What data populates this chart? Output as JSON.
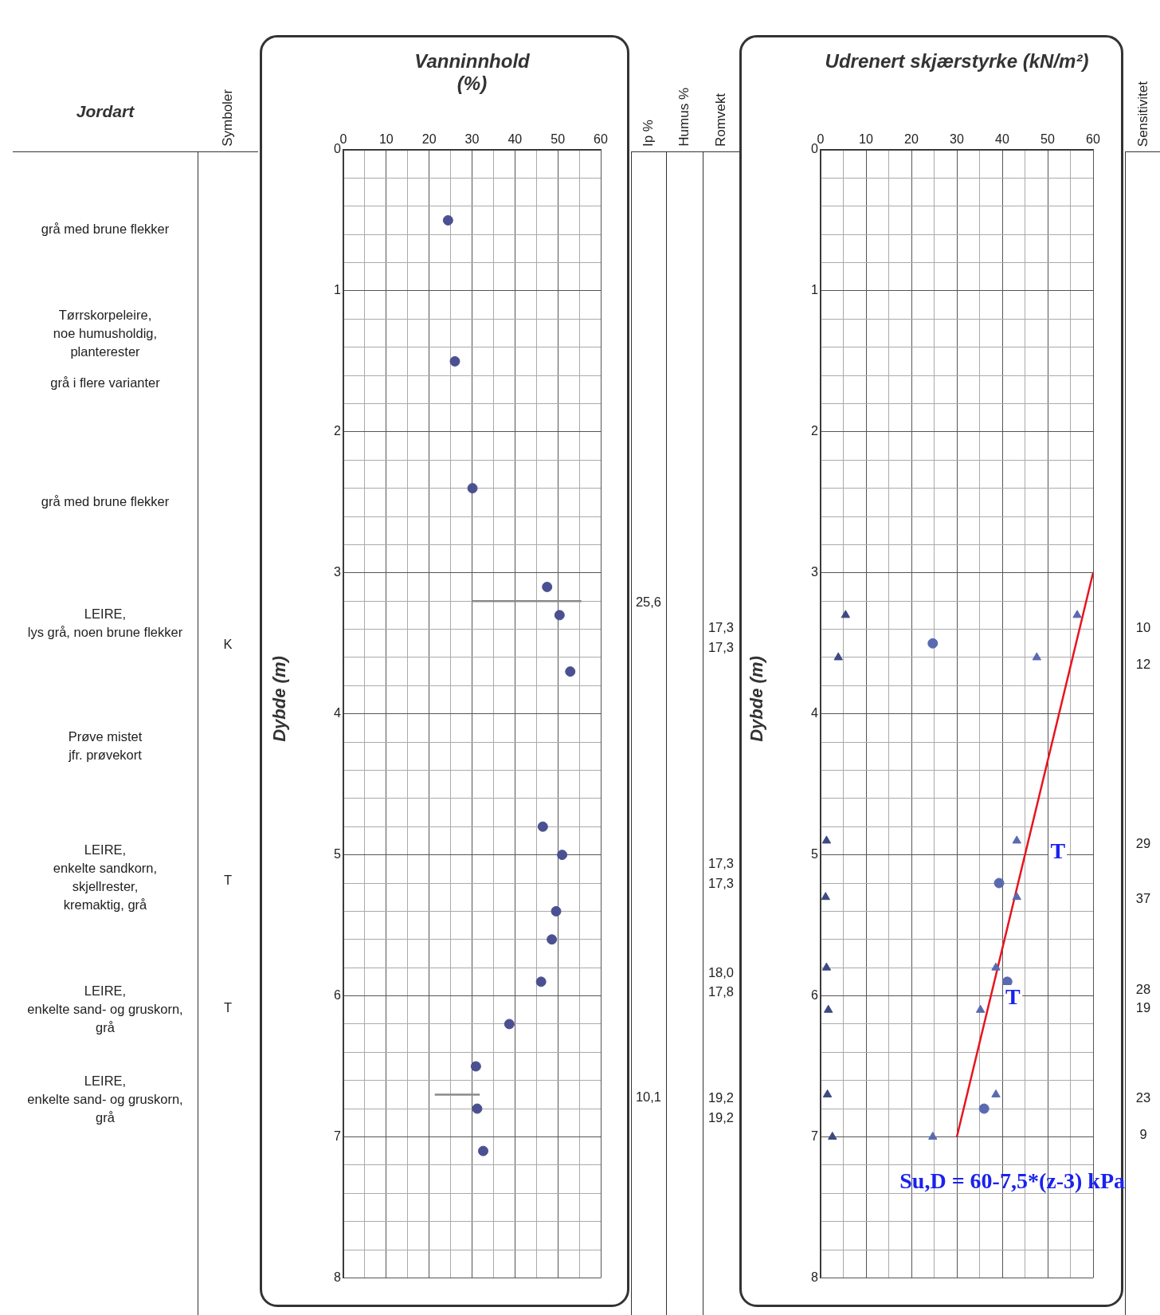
{
  "chart_data": [
    {
      "type": "other",
      "title": "Jordart",
      "annotations": [
        "grå med brune flekker",
        "Tørrskorpeleire,\nnoe humusholdig,\nplanterester",
        "grå i flere varianter",
        "grå med brune flekker",
        "LEIRE,\nlys grå, noen brune flekker",
        "Prøve mistet\njfr. prøvekort",
        "LEIRE,\nenkelte sandkorn,\nskjellrester,\nkremaktig, grå",
        "LEIRE,\nenkelte sand- og gruskorn,\ngrå",
        "LEIRE,\nenkelte sand- og gruskorn,\ngrå"
      ]
    },
    {
      "type": "other",
      "title": "Symboler",
      "annotations": [
        "K",
        "T",
        "T"
      ]
    },
    {
      "type": "scatter",
      "title": "Vanninnhold\n(%)",
      "ylabel": "Dybde (m)",
      "xlim": [
        0,
        60
      ],
      "ylim": [
        8,
        0
      ],
      "grid": true,
      "xticks": [
        0,
        {
          "value": 5,
          "label": null
        },
        10,
        {
          "value": 15,
          "label": null
        },
        20,
        {
          "value": 25,
          "label": null
        },
        30,
        {
          "value": 35,
          "label": null
        },
        40,
        {
          "value": 45,
          "label": null
        },
        50,
        {
          "value": 55,
          "label": null
        },
        60
      ],
      "yticks": [
        0,
        {
          "value": 0.2,
          "label": null
        },
        {
          "value": 0.4,
          "label": null
        },
        {
          "value": 0.6,
          "label": null
        },
        {
          "value": 0.8,
          "label": null
        },
        1,
        {
          "value": 1.2,
          "label": null
        },
        {
          "value": 1.4,
          "label": null
        },
        {
          "value": 1.6,
          "label": null
        },
        {
          "value": 1.8,
          "label": null
        },
        2,
        {
          "value": 2.2,
          "label": null
        },
        {
          "value": 2.4,
          "label": null
        },
        {
          "value": 2.6,
          "label": null
        },
        {
          "value": 2.8,
          "label": null
        },
        3,
        {
          "value": 3.2,
          "label": null
        },
        {
          "value": 3.4,
          "label": null
        },
        {
          "value": 3.6,
          "label": null
        },
        {
          "value": 3.8,
          "label": null
        },
        4,
        {
          "value": 4.2,
          "label": null
        },
        {
          "value": 4.4,
          "label": null
        },
        {
          "value": 4.6,
          "label": null
        },
        {
          "value": 4.8,
          "label": null
        },
        5,
        {
          "value": 5.2,
          "label": null
        },
        {
          "value": 5.4,
          "label": null
        },
        {
          "value": 5.6,
          "label": null
        },
        {
          "value": 5.8,
          "label": null
        },
        6,
        {
          "value": 6.2,
          "label": null
        },
        {
          "value": 6.4,
          "label": null
        },
        {
          "value": 6.6,
          "label": null
        },
        {
          "value": 6.8,
          "label": null
        },
        7,
        {
          "value": 7.2,
          "label": null
        },
        {
          "value": 7.4,
          "label": null
        },
        {
          "value": 7.6,
          "label": null
        },
        {
          "value": 7.8,
          "label": null
        },
        8
      ],
      "series": [
        {
          "type": "scatter",
          "marker": "circle",
          "color": "#4a5090",
          "x": [
            24.4,
            26.0,
            30.1,
            47.5,
            50.4,
            52.9,
            46.5,
            51.0,
            49.6,
            48.6,
            46.1,
            38.7,
            30.9,
            31.2,
            32.6
          ],
          "values": [
            0.5,
            1.5,
            2.4,
            3.1,
            3.3,
            3.7,
            4.8,
            5.0,
            5.4,
            5.6,
            5.9,
            6.2,
            6.5,
            6.8,
            7.1
          ]
        },
        {
          "type": "line",
          "color": "#8a8a8a",
          "x": [
            30.1,
            55.5
          ],
          "values": [
            3.2,
            3.2
          ]
        },
        {
          "type": "line",
          "color": "#8a8a8a",
          "x": [
            21.3,
            31.8
          ],
          "values": [
            6.7,
            6.7
          ]
        }
      ]
    },
    {
      "type": "other",
      "title": "Ip %",
      "annotations": [
        "25,6",
        "10,1"
      ]
    },
    {
      "type": "other",
      "title": "Humus %"
    },
    {
      "type": "other",
      "title": "Romvekt",
      "annotations": [
        "17,3",
        "17,3",
        "17,3",
        "17,3",
        "18,0",
        "17,8",
        "19,2",
        "19,2"
      ]
    },
    {
      "type": "scatter",
      "title": "Udrenert skjærstyrke (kN/m²)",
      "ylabel": "Dybde (m)",
      "xlim": [
        0,
        60
      ],
      "ylim": [
        8,
        0
      ],
      "grid": true,
      "xticks": [
        0,
        {
          "value": 5,
          "label": null
        },
        10,
        {
          "value": 15,
          "label": null
        },
        20,
        {
          "value": 25,
          "label": null
        },
        30,
        {
          "value": 35,
          "label": null
        },
        40,
        {
          "value": 45,
          "label": null
        },
        50,
        {
          "value": 55,
          "label": null
        },
        60
      ],
      "yticks": [
        0,
        {
          "value": 0.2,
          "label": null
        },
        {
          "value": 0.4,
          "label": null
        },
        {
          "value": 0.6,
          "label": null
        },
        {
          "value": 0.8,
          "label": null
        },
        1,
        {
          "value": 1.2,
          "label": null
        },
        {
          "value": 1.4,
          "label": null
        },
        {
          "value": 1.6,
          "label": null
        },
        {
          "value": 1.8,
          "label": null
        },
        2,
        {
          "value": 2.2,
          "label": null
        },
        {
          "value": 2.4,
          "label": null
        },
        {
          "value": 2.6,
          "label": null
        },
        {
          "value": 2.8,
          "label": null
        },
        3,
        {
          "value": 3.2,
          "label": null
        },
        {
          "value": 3.4,
          "label": null
        },
        {
          "value": 3.6,
          "label": null
        },
        {
          "value": 3.8,
          "label": null
        },
        4,
        {
          "value": 4.2,
          "label": null
        },
        {
          "value": 4.4,
          "label": null
        },
        {
          "value": 4.6,
          "label": null
        },
        {
          "value": 4.8,
          "label": null
        },
        5,
        {
          "value": 5.2,
          "label": null
        },
        {
          "value": 5.4,
          "label": null
        },
        {
          "value": 5.6,
          "label": null
        },
        {
          "value": 5.8,
          "label": null
        },
        6,
        {
          "value": 6.2,
          "label": null
        },
        {
          "value": 6.4,
          "label": null
        },
        {
          "value": 6.6,
          "label": null
        },
        {
          "value": 6.8,
          "label": null
        },
        7,
        {
          "value": 7.2,
          "label": null
        },
        {
          "value": 7.4,
          "label": null
        },
        {
          "value": 7.6,
          "label": null
        },
        {
          "value": 7.8,
          "label": null
        },
        8
      ],
      "series": [
        {
          "type": "scatter",
          "marker": "triangle",
          "color": "#3d4a80",
          "x": [
            5.5,
            3.9,
            1.3,
            1.1,
            1.3,
            1.7,
            1.5,
            2.6
          ],
          "values": [
            3.3,
            3.6,
            4.9,
            5.3,
            5.8,
            6.1,
            6.7,
            7.0
          ]
        },
        {
          "type": "scatter",
          "marker": "triangle",
          "color": "#5a6ab0",
          "x": [
            56.5,
            47.6,
            43.2,
            43.2,
            38.6,
            35.2,
            38.6,
            24.7
          ],
          "values": [
            3.3,
            3.6,
            4.9,
            5.3,
            5.8,
            6.1,
            6.7,
            7.0
          ]
        },
        {
          "type": "scatter",
          "marker": "circle",
          "color": "#5a6ab0",
          "x": [
            24.7,
            39.3,
            41.1,
            36.0
          ],
          "values": [
            3.5,
            5.2,
            5.9,
            6.8
          ]
        },
        {
          "type": "line",
          "color": "#e8141e",
          "x": [
            60,
            30
          ],
          "values": [
            3,
            7
          ]
        }
      ],
      "annotations": [
        "T",
        "T",
        "Su,D = 60-7,5*(z-3) kPa"
      ]
    },
    {
      "type": "other",
      "title": "Sensitivitet",
      "annotations": [
        "10",
        "12",
        "29",
        "37",
        "28",
        "19",
        "23",
        "9"
      ]
    }
  ]
}
